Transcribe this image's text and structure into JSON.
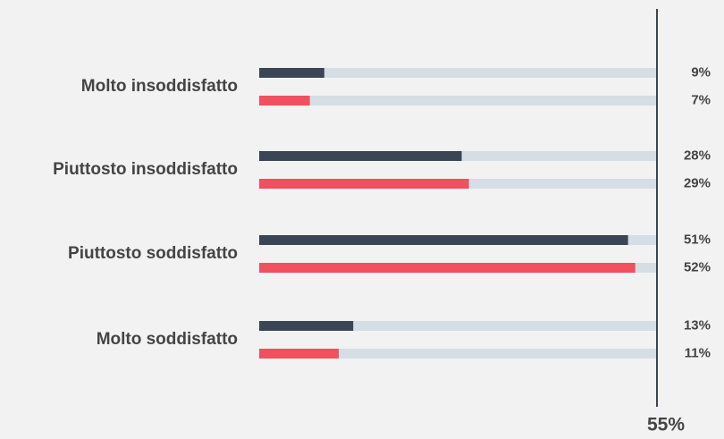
{
  "chart_data": {
    "type": "bar",
    "orientation": "horizontal",
    "categories": [
      "Molto insoddisfatto",
      "Piuttosto insoddisfatto",
      "Piuttosto soddisfatto",
      "Molto soddisfatto"
    ],
    "series": [
      {
        "color": "#3a4556",
        "values": [
          9,
          28,
          51,
          13
        ],
        "value_labels": [
          "9%",
          "28%",
          "51%",
          "13%"
        ]
      },
      {
        "color": "#f0505f",
        "values": [
          7,
          29,
          52,
          11
        ],
        "value_labels": [
          "7%",
          "29%",
          "52%",
          "11%"
        ]
      }
    ],
    "track_color": "#d5dde5",
    "xlim": [
      0,
      55
    ],
    "xticks": [
      {
        "value": 55,
        "label": "55%"
      }
    ]
  }
}
